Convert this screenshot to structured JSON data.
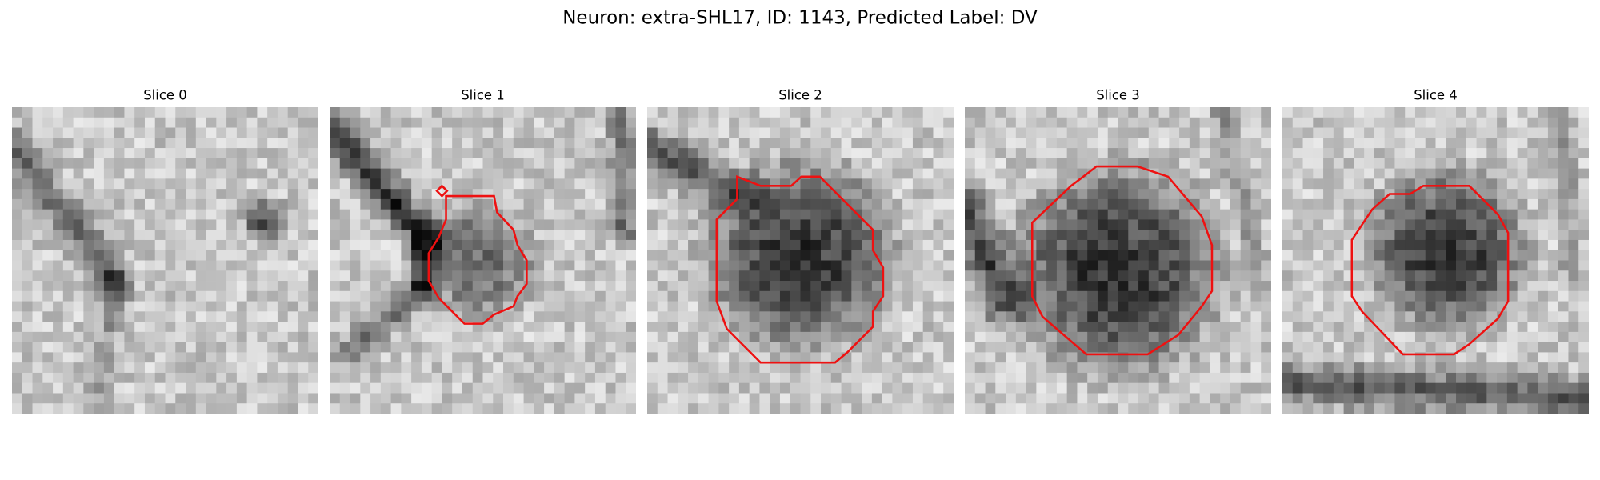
{
  "title": "Neuron: extra-SHL17, ID: 1143, Predicted Label: DV",
  "panels": [
    {
      "title": "Slice 0"
    },
    {
      "title": "Slice 1"
    },
    {
      "title": "Slice 2"
    },
    {
      "title": "Slice 3"
    },
    {
      "title": "Slice 4"
    }
  ]
}
